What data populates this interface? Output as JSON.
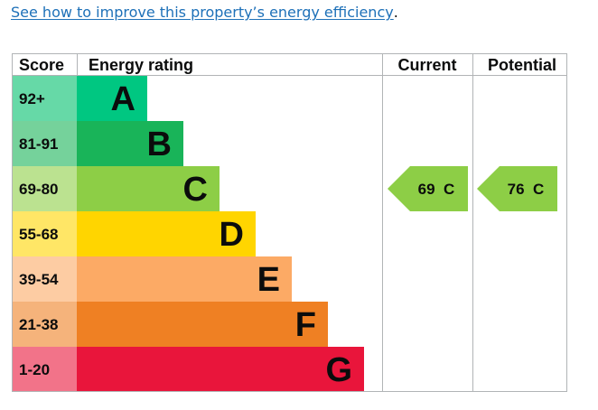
{
  "link": {
    "text": "See how to improve this property’s energy efficiency",
    "trailing": "."
  },
  "chart_data": {
    "type": "table",
    "headers": {
      "score": "Score",
      "rating": "Energy rating",
      "current": "Current",
      "potential": "Potential"
    },
    "bands": [
      {
        "score": "92+",
        "letter": "A",
        "color": "#00c781",
        "score_bg": "#66d9a7"
      },
      {
        "score": "81-91",
        "letter": "B",
        "color": "#19b459",
        "score_bg": "#75d29b"
      },
      {
        "score": "69-80",
        "letter": "C",
        "color": "#8dce46",
        "score_bg": "#bbe290"
      },
      {
        "score": "55-68",
        "letter": "D",
        "color": "#ffd500",
        "score_bg": "#ffe666"
      },
      {
        "score": "39-54",
        "letter": "E",
        "color": "#fcaa65",
        "score_bg": "#fdcca3"
      },
      {
        "score": "21-38",
        "letter": "F",
        "color": "#ef8023",
        "score_bg": "#f5b37b"
      },
      {
        "score": "1-20",
        "letter": "G",
        "color": "#e9153b",
        "score_bg": "#f27389"
      }
    ],
    "current": {
      "value": 69,
      "band": "C",
      "label": "69  C",
      "color": "#8dce46"
    },
    "potential": {
      "value": 76,
      "band": "C",
      "label": "76  C",
      "color": "#8dce46"
    }
  }
}
